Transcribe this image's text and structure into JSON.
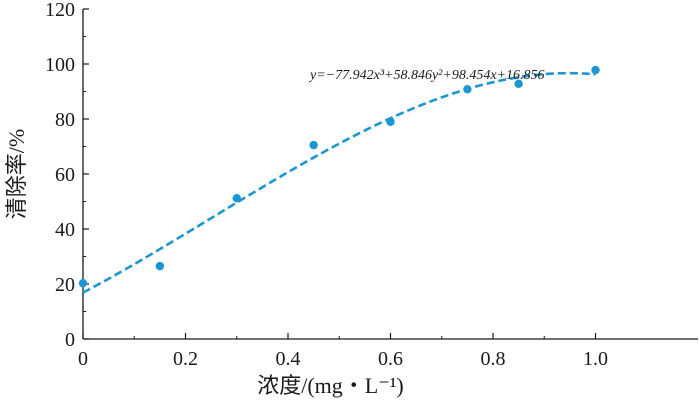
{
  "chart_data": {
    "type": "scatter",
    "title": "",
    "xlabel": "浓度/(mg・L⁻¹)",
    "ylabel": "清除率/%",
    "xlim": [
      0,
      1.2
    ],
    "ylim": [
      0,
      120
    ],
    "xticks": [
      0,
      0.2,
      0.4,
      0.6,
      0.8,
      1.0
    ],
    "xtick_labels": [
      "0",
      "0.2",
      "0.4",
      "0.6",
      "0.8",
      "1.0"
    ],
    "yticks": [
      0,
      20,
      40,
      60,
      80,
      100,
      120
    ],
    "ytick_labels": [
      "0",
      "20",
      "40",
      "60",
      "80",
      "100",
      "120"
    ],
    "grid": false,
    "series": [
      {
        "marker": "circle",
        "color": "#1b96d3",
        "x": [
          0,
          0.15,
          0.3,
          0.45,
          0.6,
          0.75,
          0.85,
          1.0
        ],
        "y": [
          20.3,
          26.5,
          51.2,
          70.5,
          79,
          90.8,
          92.8,
          97.8
        ]
      }
    ],
    "fit": {
      "style": "dashed",
      "color": "#1b96d3",
      "coefficients": [
        -77.942,
        58.846,
        98.454,
        16.856
      ],
      "x_range": [
        0,
        1.0
      ],
      "equation": "y=−77.942x³+58.846y²+98.454x+16.856"
    }
  }
}
